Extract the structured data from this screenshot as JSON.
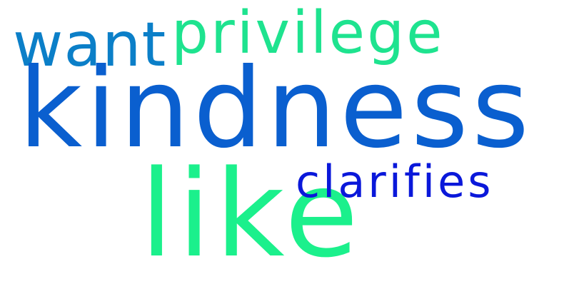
{
  "words": [
    {
      "text": "kindness",
      "color": "#0a5fcf"
    },
    {
      "text": "like",
      "color": "#1bf08c"
    },
    {
      "text": "privilege",
      "color": "#1ee38f"
    },
    {
      "text": "want",
      "color": "#0b7fc8"
    },
    {
      "text": "clarifies",
      "color": "#0a18da"
    }
  ]
}
